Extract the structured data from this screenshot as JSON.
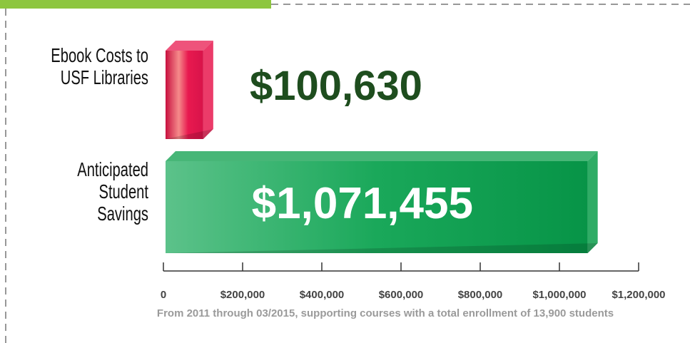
{
  "chart_data": {
    "type": "hbar",
    "categories": [
      "Ebook Costs to USF Libraries",
      "Anticipated Student Savings"
    ],
    "values": [
      100630,
      1071455
    ],
    "value_labels": [
      "$100,630",
      "$1,071,455"
    ],
    "colors": [
      "#e8194f",
      "#0a9e4a"
    ],
    "xlim": [
      0,
      1200000
    ],
    "xticks": [
      0,
      {
        "value": 200000,
        "label": "$200,000"
      },
      {
        "value": 400000,
        "label": "$400,000"
      },
      {
        "value": 600000,
        "label": "$600,000"
      },
      {
        "value": 800000,
        "label": "$800,000"
      },
      {
        "value": 1000000,
        "label": "$1,000,000"
      },
      {
        "value": 1200000,
        "label": "$1,200,000"
      }
    ],
    "note": "From 2011 through 03/2015, supporting courses with a total enrollment of 13,900 students"
  }
}
